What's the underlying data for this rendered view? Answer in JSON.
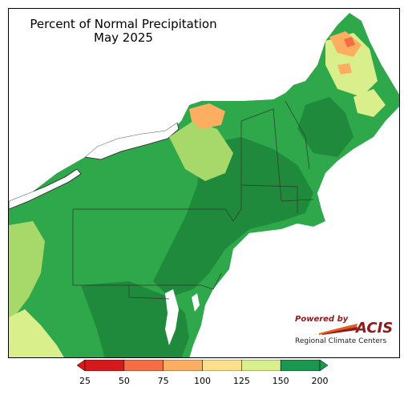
{
  "map": {
    "title": "Percent of Normal Precipitation",
    "subtitle": "May 2025"
  },
  "legend": {
    "ticks": [
      "25",
      "50",
      "75",
      "100",
      "125",
      "150",
      "200"
    ],
    "colors": [
      "#d7191c",
      "#f46d43",
      "#fdae61",
      "#fee08b",
      "#d9ef8b",
      "#a6d96a",
      "#1a9850"
    ],
    "bins": [
      {
        "from": 25,
        "to": 50,
        "color": "#d7191c"
      },
      {
        "from": 50,
        "to": 75,
        "color": "#f46d43"
      },
      {
        "from": 75,
        "to": 100,
        "color": "#fdae61"
      },
      {
        "from": 100,
        "to": 125,
        "color": "#fee08b"
      },
      {
        "from": 125,
        "to": 150,
        "color": "#d9ef8b"
      },
      {
        "from": 150,
        "to": 200,
        "color": "#1a9850"
      }
    ],
    "below_min_color": "#d7191c",
    "above_max_color": "#1a9850"
  },
  "palette": {
    "wet_dark": "#1f8a3c",
    "wet": "#2ea84a",
    "moist": "#a6d96a",
    "near_normal": "#d9ef8b",
    "pale": "#fee08b",
    "dry": "#fdae61",
    "very_dry": "#f46d43",
    "border": "#333333"
  },
  "logo": {
    "powered_by": "Powered by",
    "name": "ACIS",
    "org": "Regional Climate Centers"
  }
}
